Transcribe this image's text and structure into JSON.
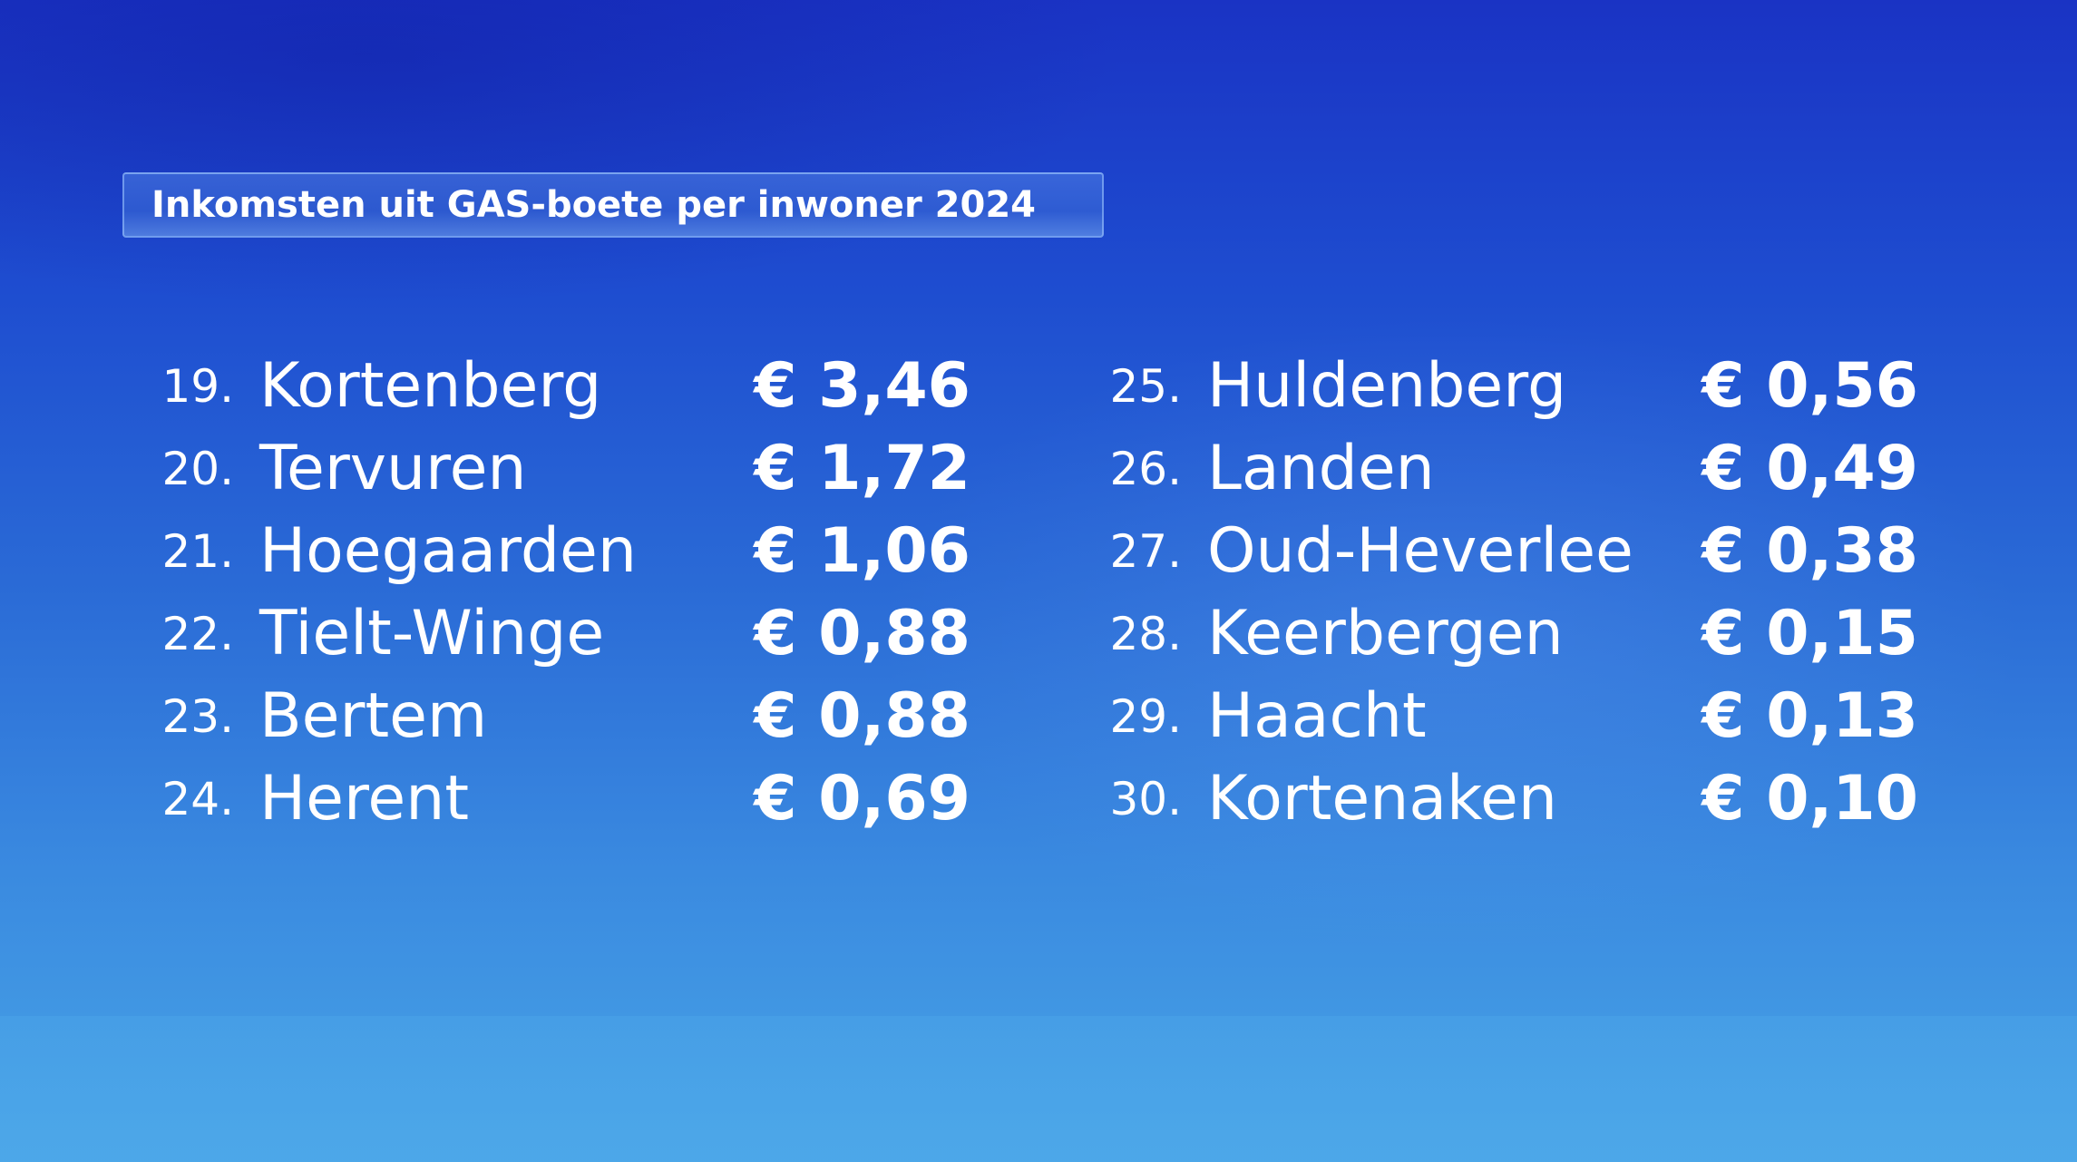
{
  "title": "Inkomsten uit GAS-boete per inwoner 2024",
  "columns": [
    {
      "rows": [
        {
          "rank": "19.",
          "name": "Kortenberg",
          "value": "€ 3,46"
        },
        {
          "rank": "20.",
          "name": "Tervuren",
          "value": "€ 1,72"
        },
        {
          "rank": "21.",
          "name": "Hoegaarden",
          "value": "€ 1,06"
        },
        {
          "rank": "22.",
          "name": "Tielt-Winge",
          "value": "€ 0,88"
        },
        {
          "rank": "23.",
          "name": "Bertem",
          "value": "€ 0,88"
        },
        {
          "rank": "24.",
          "name": "Herent",
          "value": "€ 0,69"
        }
      ]
    },
    {
      "rows": [
        {
          "rank": "25.",
          "name": "Huldenberg",
          "value": "€ 0,56"
        },
        {
          "rank": "26.",
          "name": "Landen",
          "value": "€ 0,49"
        },
        {
          "rank": "27.",
          "name": "Oud-Heverlee",
          "value": "€ 0,38"
        },
        {
          "rank": "28.",
          "name": "Keerbergen",
          "value": "€ 0,15"
        },
        {
          "rank": "29.",
          "name": "Haacht",
          "value": "€ 0,13"
        },
        {
          "rank": "30.",
          "name": "Kortenaken",
          "value": "€ 0,10"
        }
      ]
    }
  ]
}
